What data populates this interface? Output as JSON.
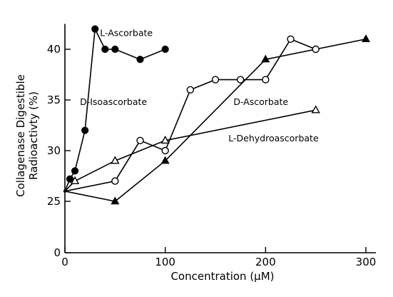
{
  "chart_data": {
    "type": "line",
    "xlabel": "Concentration (μM)",
    "ylabel": [
      "Collagenase Digestible",
      "Radioactivty (%)"
    ],
    "xlim": [
      0,
      300
    ],
    "ylim": [
      0,
      42.5
    ],
    "ylim_note": "",
    "x_ticks": [
      0,
      100,
      200,
      300
    ],
    "x_tick_labels": [
      "0",
      "100",
      "200",
      "300"
    ],
    "y_ticks": [
      0,
      25,
      30,
      35,
      40
    ],
    "y_tick_labels": [
      "0",
      "25",
      "30",
      "35",
      "40"
    ],
    "y_axis_break": true,
    "grid": false,
    "series": [
      {
        "name": "L-Ascorbate",
        "marker": "circle-filled",
        "x": [
          0,
          5,
          10,
          20,
          30,
          40,
          50,
          75,
          100
        ],
        "y": [
          26,
          27.2,
          28,
          32,
          42,
          40,
          40,
          39,
          40
        ]
      },
      {
        "name": "D-Isoascorbate",
        "marker": "circle-open",
        "x": [
          0,
          50,
          75,
          100,
          125,
          150,
          175,
          200,
          225,
          250
        ],
        "y": [
          26,
          27,
          31,
          30,
          36,
          37,
          37,
          37,
          41,
          40
        ]
      },
      {
        "name": "D-Ascorbate",
        "marker": "triangle-filled",
        "x": [
          0,
          50,
          100,
          200,
          300
        ],
        "y": [
          26,
          25,
          29,
          39,
          41
        ]
      },
      {
        "name": "L-Dehydroascorbate",
        "marker": "triangle-open",
        "x": [
          0,
          10,
          50,
          100,
          250
        ],
        "y": [
          26,
          27,
          29,
          31,
          34
        ]
      }
    ],
    "labels": [
      {
        "text": "L-Ascorbate",
        "x": 35,
        "y": 41.3,
        "series": 0
      },
      {
        "text": "D-Isoascorbate",
        "x": 15,
        "y": 34.5,
        "series": 1
      },
      {
        "text": "D-Ascorbate",
        "x": 168,
        "y": 34.5,
        "series": 2
      },
      {
        "text": "L-Dehydroascorbate",
        "x": 163,
        "y": 30.9,
        "series": 3
      }
    ]
  }
}
